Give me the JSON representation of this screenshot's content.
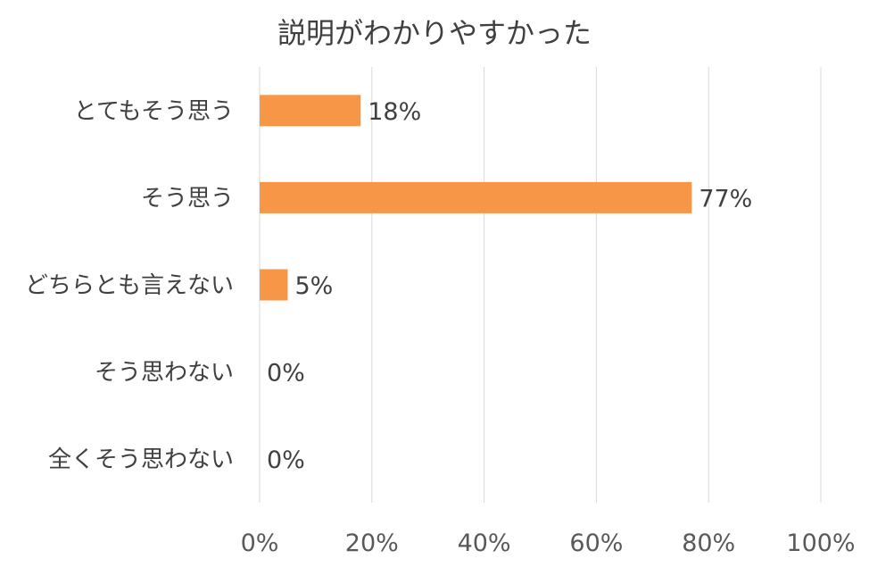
{
  "chart_data": {
    "type": "bar",
    "orientation": "horizontal",
    "title": "説明がわかりやすかった",
    "categories": [
      "とてもそう思う",
      "そう思う",
      "どちらとも言えない",
      "そう思わない",
      "全くそう思わない"
    ],
    "values": [
      18,
      77,
      5,
      0,
      0
    ],
    "data_labels": [
      "18%",
      "77%",
      "5%",
      "0%",
      "0%"
    ],
    "xlim": [
      0,
      100
    ],
    "x_ticks": [
      0,
      20,
      40,
      60,
      80,
      100
    ],
    "x_tick_labels": [
      "0%",
      "20%",
      "40%",
      "60%",
      "80%",
      "100%"
    ],
    "xlabel": "",
    "ylabel": "",
    "grid": "vertical",
    "legend": "none",
    "bar_color": "#f79646"
  }
}
